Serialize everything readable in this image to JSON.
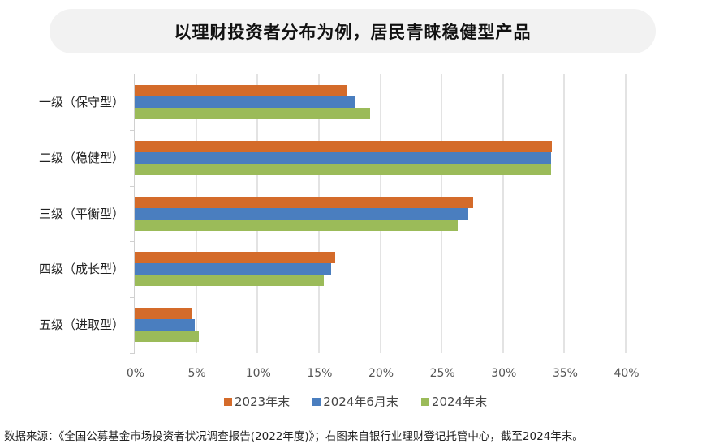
{
  "title": "以理财投资者分布为例，居民青睐稳健型产品",
  "chart_data": {
    "type": "bar",
    "orientation": "horizontal",
    "title": "以理财投资者分布为例，居民青睐稳健型产品",
    "categories": [
      "一级（保守型）",
      "二级（稳健型）",
      "三级（平衡型）",
      "四级（成长型）",
      "五级（进取型）"
    ],
    "series": [
      {
        "name": "2023年末",
        "color": "#d46b2a",
        "values": [
          17.3,
          34.0,
          27.6,
          16.3,
          4.7
        ]
      },
      {
        "name": "2024年6月末",
        "color": "#4a7ebf",
        "values": [
          18.0,
          33.9,
          27.2,
          16.0,
          4.9
        ]
      },
      {
        "name": "2024年末",
        "color": "#9bbb59",
        "values": [
          19.2,
          33.9,
          26.3,
          15.4,
          5.2
        ]
      }
    ],
    "xlabel": "",
    "ylabel": "",
    "xlim": [
      0,
      40
    ],
    "xticks": [
      "0%",
      "5%",
      "10%",
      "15%",
      "20%",
      "25%",
      "30%",
      "35%",
      "40%"
    ],
    "grid": true,
    "legend_position": "bottom",
    "unit": "%"
  },
  "legend": [
    {
      "label": "2023年末",
      "color": "#d46b2a"
    },
    {
      "label": "2024年6月末",
      "color": "#4a7ebf"
    },
    {
      "label": "2024年末",
      "color": "#9bbb59"
    }
  ],
  "source_note": "数据来源：《全国公募基金市场投资者状况调查报告(2022年度)》；右图来自银行业理财登记托管中心，截至2024年末。"
}
